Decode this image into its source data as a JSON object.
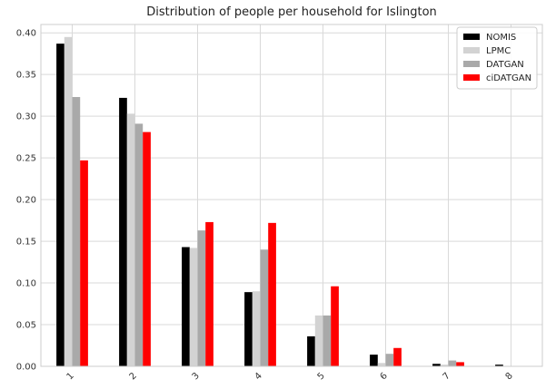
{
  "chart_data": {
    "type": "bar",
    "title": "Distribution of people per household for Islington",
    "xlabel": "",
    "ylabel": "",
    "categories": [
      "1",
      "2",
      "3",
      "4",
      "5",
      "6",
      "7",
      "8"
    ],
    "y_ticks": [
      "0.00",
      "0.05",
      "0.10",
      "0.15",
      "0.20",
      "0.25",
      "0.30",
      "0.35",
      "0.40"
    ],
    "ylim": [
      0,
      0.41
    ],
    "grid": true,
    "legend_position": "top-right",
    "series": [
      {
        "name": "NOMIS",
        "color": "#000000",
        "values": [
          0.387,
          0.322,
          0.143,
          0.089,
          0.036,
          0.014,
          0.003,
          0.002
        ]
      },
      {
        "name": "LPMC",
        "color": "#d3d3d3",
        "values": [
          0.395,
          0.303,
          0.142,
          0.09,
          0.061,
          0.004,
          0.002,
          0.0
        ]
      },
      {
        "name": "DATGAN",
        "color": "#a9a9a9",
        "values": [
          0.323,
          0.291,
          0.163,
          0.14,
          0.061,
          0.015,
          0.007,
          0.0
        ]
      },
      {
        "name": "ciDATGAN",
        "color": "#ff0000",
        "values": [
          0.247,
          0.281,
          0.173,
          0.172,
          0.096,
          0.022,
          0.005,
          0.0
        ]
      }
    ]
  }
}
